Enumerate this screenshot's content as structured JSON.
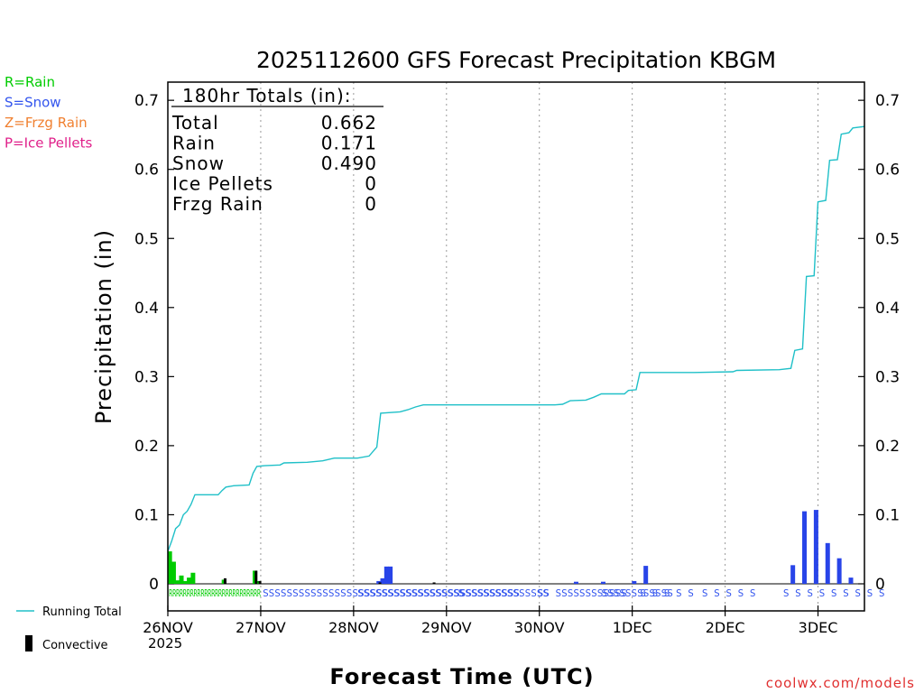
{
  "chart_data": {
    "type": "bar",
    "title": "2025112600 GFS Forecast Precipitation KBGM",
    "xlabel": "Forecast Time (UTC)",
    "ylabel": "Precipitation (in)",
    "ylim": [
      0,
      0.73
    ],
    "xlim_hours": [
      0,
      180
    ],
    "yticks": [
      "0",
      "0.1",
      "0.2",
      "0.3",
      "0.4",
      "0.5",
      "0.6",
      "0.7"
    ],
    "xticks": [
      {
        "hour": 0,
        "label": "26NOV"
      },
      {
        "hour": 24,
        "label": "27NOV"
      },
      {
        "hour": 48,
        "label": "28NOV"
      },
      {
        "hour": 72,
        "label": "29NOV"
      },
      {
        "hour": 96,
        "label": "30NOV"
      },
      {
        "hour": 120,
        "label": "1DEC"
      },
      {
        "hour": 144,
        "label": "2DEC"
      },
      {
        "hour": 168,
        "label": "3DEC"
      }
    ],
    "year_label": "2025",
    "legend_types": [
      {
        "text": "R=Rain",
        "color": "#00cc00"
      },
      {
        "text": "S=Snow",
        "color": "#3355ee"
      },
      {
        "text": "Z=Frzg Rain",
        "color": "#f08030"
      },
      {
        "text": "P=Ice Pellets",
        "color": "#e0208a"
      }
    ],
    "legend_series": [
      {
        "text": "Running Total",
        "color": "#20c0c8"
      },
      {
        "text": "Convective",
        "color": "#000000"
      }
    ],
    "totals": {
      "heading": "180hr Totals (in):",
      "rows": [
        {
          "label": "Total",
          "value": "0.662"
        },
        {
          "label": "Rain",
          "value": "0.171"
        },
        {
          "label": "Snow",
          "value": "0.490"
        },
        {
          "label": "Ice Pellets",
          "value": "0"
        },
        {
          "label": "Frzg Rain",
          "value": "0"
        }
      ]
    },
    "precip_bars": [
      {
        "hour": 0.5,
        "value": 0.047,
        "type": "rain"
      },
      {
        "hour": 1.5,
        "value": 0.032,
        "type": "rain"
      },
      {
        "hour": 2.5,
        "value": 0.005,
        "type": "rain"
      },
      {
        "hour": 3.5,
        "value": 0.012,
        "type": "rain"
      },
      {
        "hour": 4.5,
        "value": 0.004,
        "type": "rain"
      },
      {
        "hour": 5.5,
        "value": 0.009,
        "type": "rain"
      },
      {
        "hour": 6.5,
        "value": 0.016,
        "type": "rain"
      },
      {
        "hour": 14.5,
        "value": 0.006,
        "type": "rain"
      },
      {
        "hour": 22.5,
        "value": 0.019,
        "type": "rain"
      },
      {
        "hour": 23.5,
        "value": 0.004,
        "type": "rain"
      },
      {
        "hour": 54.5,
        "value": 0.004,
        "type": "snow"
      },
      {
        "hour": 55.5,
        "value": 0.008,
        "type": "snow"
      },
      {
        "hour": 56.5,
        "value": 0.025,
        "type": "snow"
      },
      {
        "hour": 57.5,
        "value": 0.025,
        "type": "snow"
      },
      {
        "hour": 105.5,
        "value": 0.003,
        "type": "snow"
      },
      {
        "hour": 112.5,
        "value": 0.003,
        "type": "snow"
      },
      {
        "hour": 120.5,
        "value": 0.004,
        "type": "snow"
      },
      {
        "hour": 123.5,
        "value": 0.026,
        "type": "snow"
      },
      {
        "hour": 161.5,
        "value": 0.027,
        "type": "snow"
      },
      {
        "hour": 164.5,
        "value": 0.105,
        "type": "snow"
      },
      {
        "hour": 167.5,
        "value": 0.107,
        "type": "snow"
      },
      {
        "hour": 170.5,
        "value": 0.059,
        "type": "snow"
      },
      {
        "hour": 173.5,
        "value": 0.037,
        "type": "snow"
      },
      {
        "hour": 176.5,
        "value": 0.009,
        "type": "snow"
      }
    ],
    "convective_bars": [
      {
        "hour": 14.8,
        "value": 0.008
      },
      {
        "hour": 22.8,
        "value": 0.019
      },
      {
        "hour": 23.8,
        "value": 0.004
      },
      {
        "hour": 54.8,
        "value": 0.002
      },
      {
        "hour": 68.8,
        "value": 0.002
      }
    ],
    "running_total": [
      [
        0,
        0.047
      ],
      [
        1,
        0.062
      ],
      [
        2,
        0.08
      ],
      [
        3,
        0.085
      ],
      [
        4,
        0.1
      ],
      [
        5,
        0.105
      ],
      [
        6,
        0.115
      ],
      [
        7,
        0.129
      ],
      [
        13,
        0.129
      ],
      [
        14,
        0.135
      ],
      [
        15,
        0.14
      ],
      [
        17,
        0.142
      ],
      [
        21,
        0.143
      ],
      [
        22,
        0.16
      ],
      [
        23,
        0.17
      ],
      [
        25,
        0.171
      ],
      [
        29,
        0.172
      ],
      [
        30,
        0.175
      ],
      [
        36,
        0.176
      ],
      [
        40,
        0.178
      ],
      [
        43,
        0.182
      ],
      [
        49,
        0.182
      ],
      [
        52,
        0.185
      ],
      [
        54,
        0.198
      ],
      [
        55,
        0.247
      ],
      [
        60,
        0.249
      ],
      [
        62,
        0.252
      ],
      [
        64,
        0.256
      ],
      [
        66,
        0.259
      ],
      [
        100,
        0.259
      ],
      [
        102,
        0.26
      ],
      [
        104,
        0.265
      ],
      [
        108,
        0.266
      ],
      [
        110,
        0.27
      ],
      [
        112,
        0.275
      ],
      [
        118,
        0.275
      ],
      [
        119,
        0.28
      ],
      [
        121,
        0.281
      ],
      [
        122,
        0.306
      ],
      [
        136,
        0.306
      ],
      [
        146,
        0.307
      ],
      [
        147,
        0.309
      ],
      [
        158,
        0.31
      ],
      [
        161,
        0.312
      ],
      [
        162,
        0.338
      ],
      [
        164,
        0.34
      ],
      [
        165,
        0.445
      ],
      [
        167,
        0.446
      ],
      [
        168,
        0.553
      ],
      [
        170,
        0.555
      ],
      [
        171,
        0.613
      ],
      [
        173,
        0.614
      ],
      [
        174,
        0.651
      ],
      [
        176,
        0.653
      ],
      [
        177,
        0.66
      ],
      [
        180,
        0.662
      ]
    ],
    "type_letters_rain": "RRRRRRRRRRRRRRRRRRRRRRRRRR",
    "type_letters_snow": [
      {
        "text": "SSSSSSSSSSSSSSSSSSSSSSSSSSSSSSSSSSSSSSSSSSS",
        "hour": 24.5
      },
      {
        "text": "SSSSSSSSSSSSSSSSSSSSSSSSSSSSSSSS",
        "hour": 49
      },
      {
        "text": "S",
        "hour": 75
      },
      {
        "text": "SSSS S",
        "hour": 80
      },
      {
        "text": "SS SSSSSSSSSSSS",
        "hour": 95.5
      },
      {
        "text": "SSSSSSSSSSSS",
        "hour": 112
      },
      {
        "text": "S S S S S",
        "hour": 122
      },
      {
        "text": "S S S S S",
        "hour": 138
      },
      {
        "text": "S S S S S S S S S",
        "hour": 159
      }
    ]
  },
  "footer": {
    "credit": "coolwx.com/models"
  }
}
